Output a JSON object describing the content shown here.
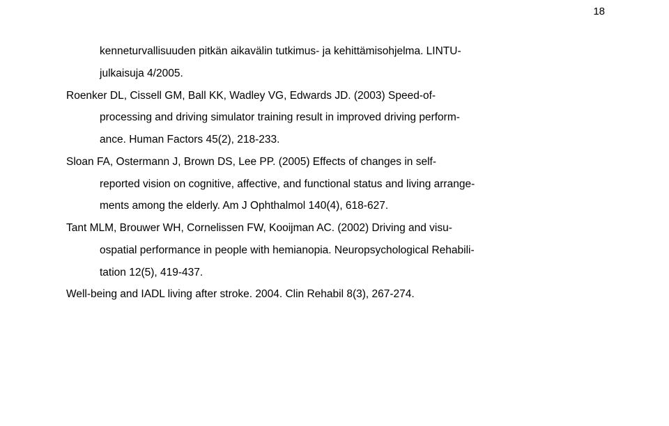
{
  "page_number": "18",
  "references": {
    "r1_l1": "kenneturvallisuuden pitkän aikavälin tutkimus- ja kehittämisohjelma. LINTU-",
    "r1_l2": "julkaisuja 4/2005.",
    "r2_l1": "Roenker DL, Cissell GM, Ball KK, Wadley VG, Edwards JD. (2003) Speed-of-",
    "r2_l2": "processing and driving simulator training result in improved driving perform-",
    "r2_l3": "ance. Human Factors 45(2), 218-233.",
    "r3_l1": "Sloan FA, Ostermann J, Brown DS, Lee PP. (2005) Effects of changes in self-",
    "r3_l2": "reported vision on cognitive, affective, and functional status and living arrange-",
    "r3_l3": "ments among the elderly. Am J Ophthalmol 140(4), 618-627.",
    "r4_l1": "Tant MLM, Brouwer WH, Cornelissen FW, Kooijman AC. (2002) Driving and visu-",
    "r4_l2": "ospatial performance in people with hemianopia. Neuropsychological Rehabili-",
    "r4_l3": "tation 12(5), 419-437.",
    "r5_l1": "Well-being and IADL living after stroke. 2004. Clin Rehabil 8(3), 267-274."
  }
}
